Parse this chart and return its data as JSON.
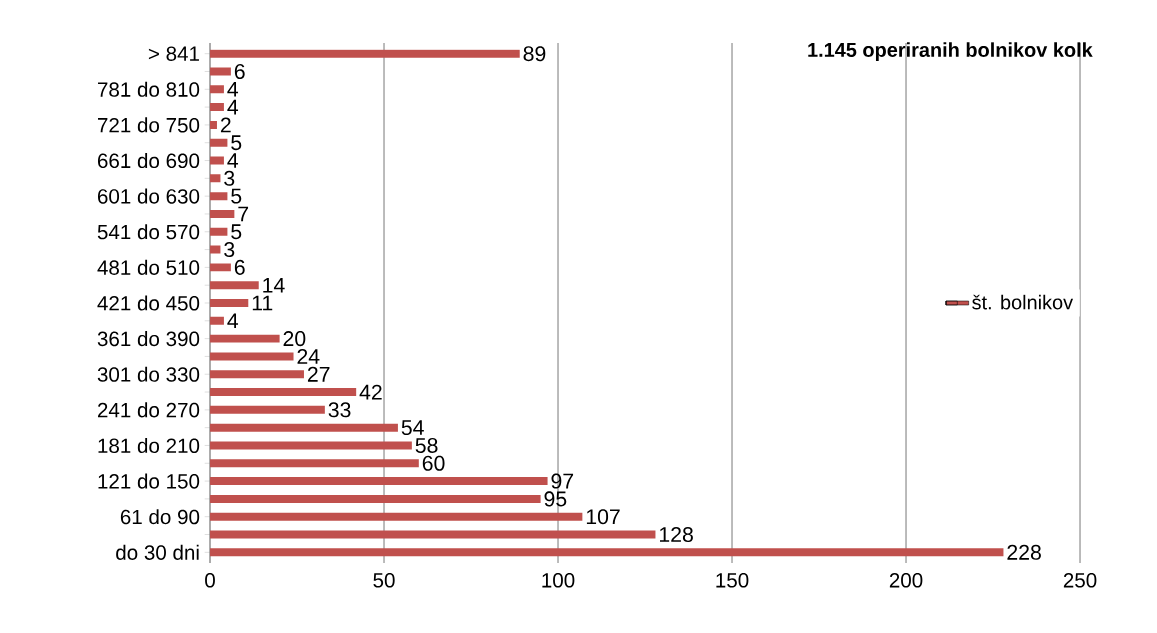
{
  "chart_data": {
    "type": "bar",
    "orientation": "horizontal",
    "title": "1.145 operiranih  bolnikov kolk",
    "categories": [
      "> 841",
      null,
      "781 do 810",
      null,
      "721 do 750",
      null,
      "661 do 690",
      null,
      "601 do 630",
      null,
      "541 do 570",
      null,
      "481 do 510",
      null,
      "421 do 450",
      null,
      "361 do 390",
      null,
      "301 do 330",
      null,
      "241 do 270",
      null,
      "181 do 210",
      null,
      "121 do 150",
      null,
      "61 do 90",
      null,
      "do 30 dni"
    ],
    "series": [
      {
        "name": "št. bolnikov",
        "color": "#c0504d",
        "values": [
          89,
          6,
          4,
          4,
          2,
          5,
          4,
          3,
          5,
          7,
          5,
          3,
          6,
          14,
          11,
          4,
          20,
          24,
          27,
          42,
          33,
          54,
          58,
          60,
          97,
          95,
          107,
          128,
          228
        ]
      }
    ],
    "xlim": [
      0,
      250
    ],
    "xticks": [
      0,
      50,
      100,
      150,
      200,
      250
    ],
    "grid": "x",
    "legend": "right",
    "data_labels": true
  }
}
